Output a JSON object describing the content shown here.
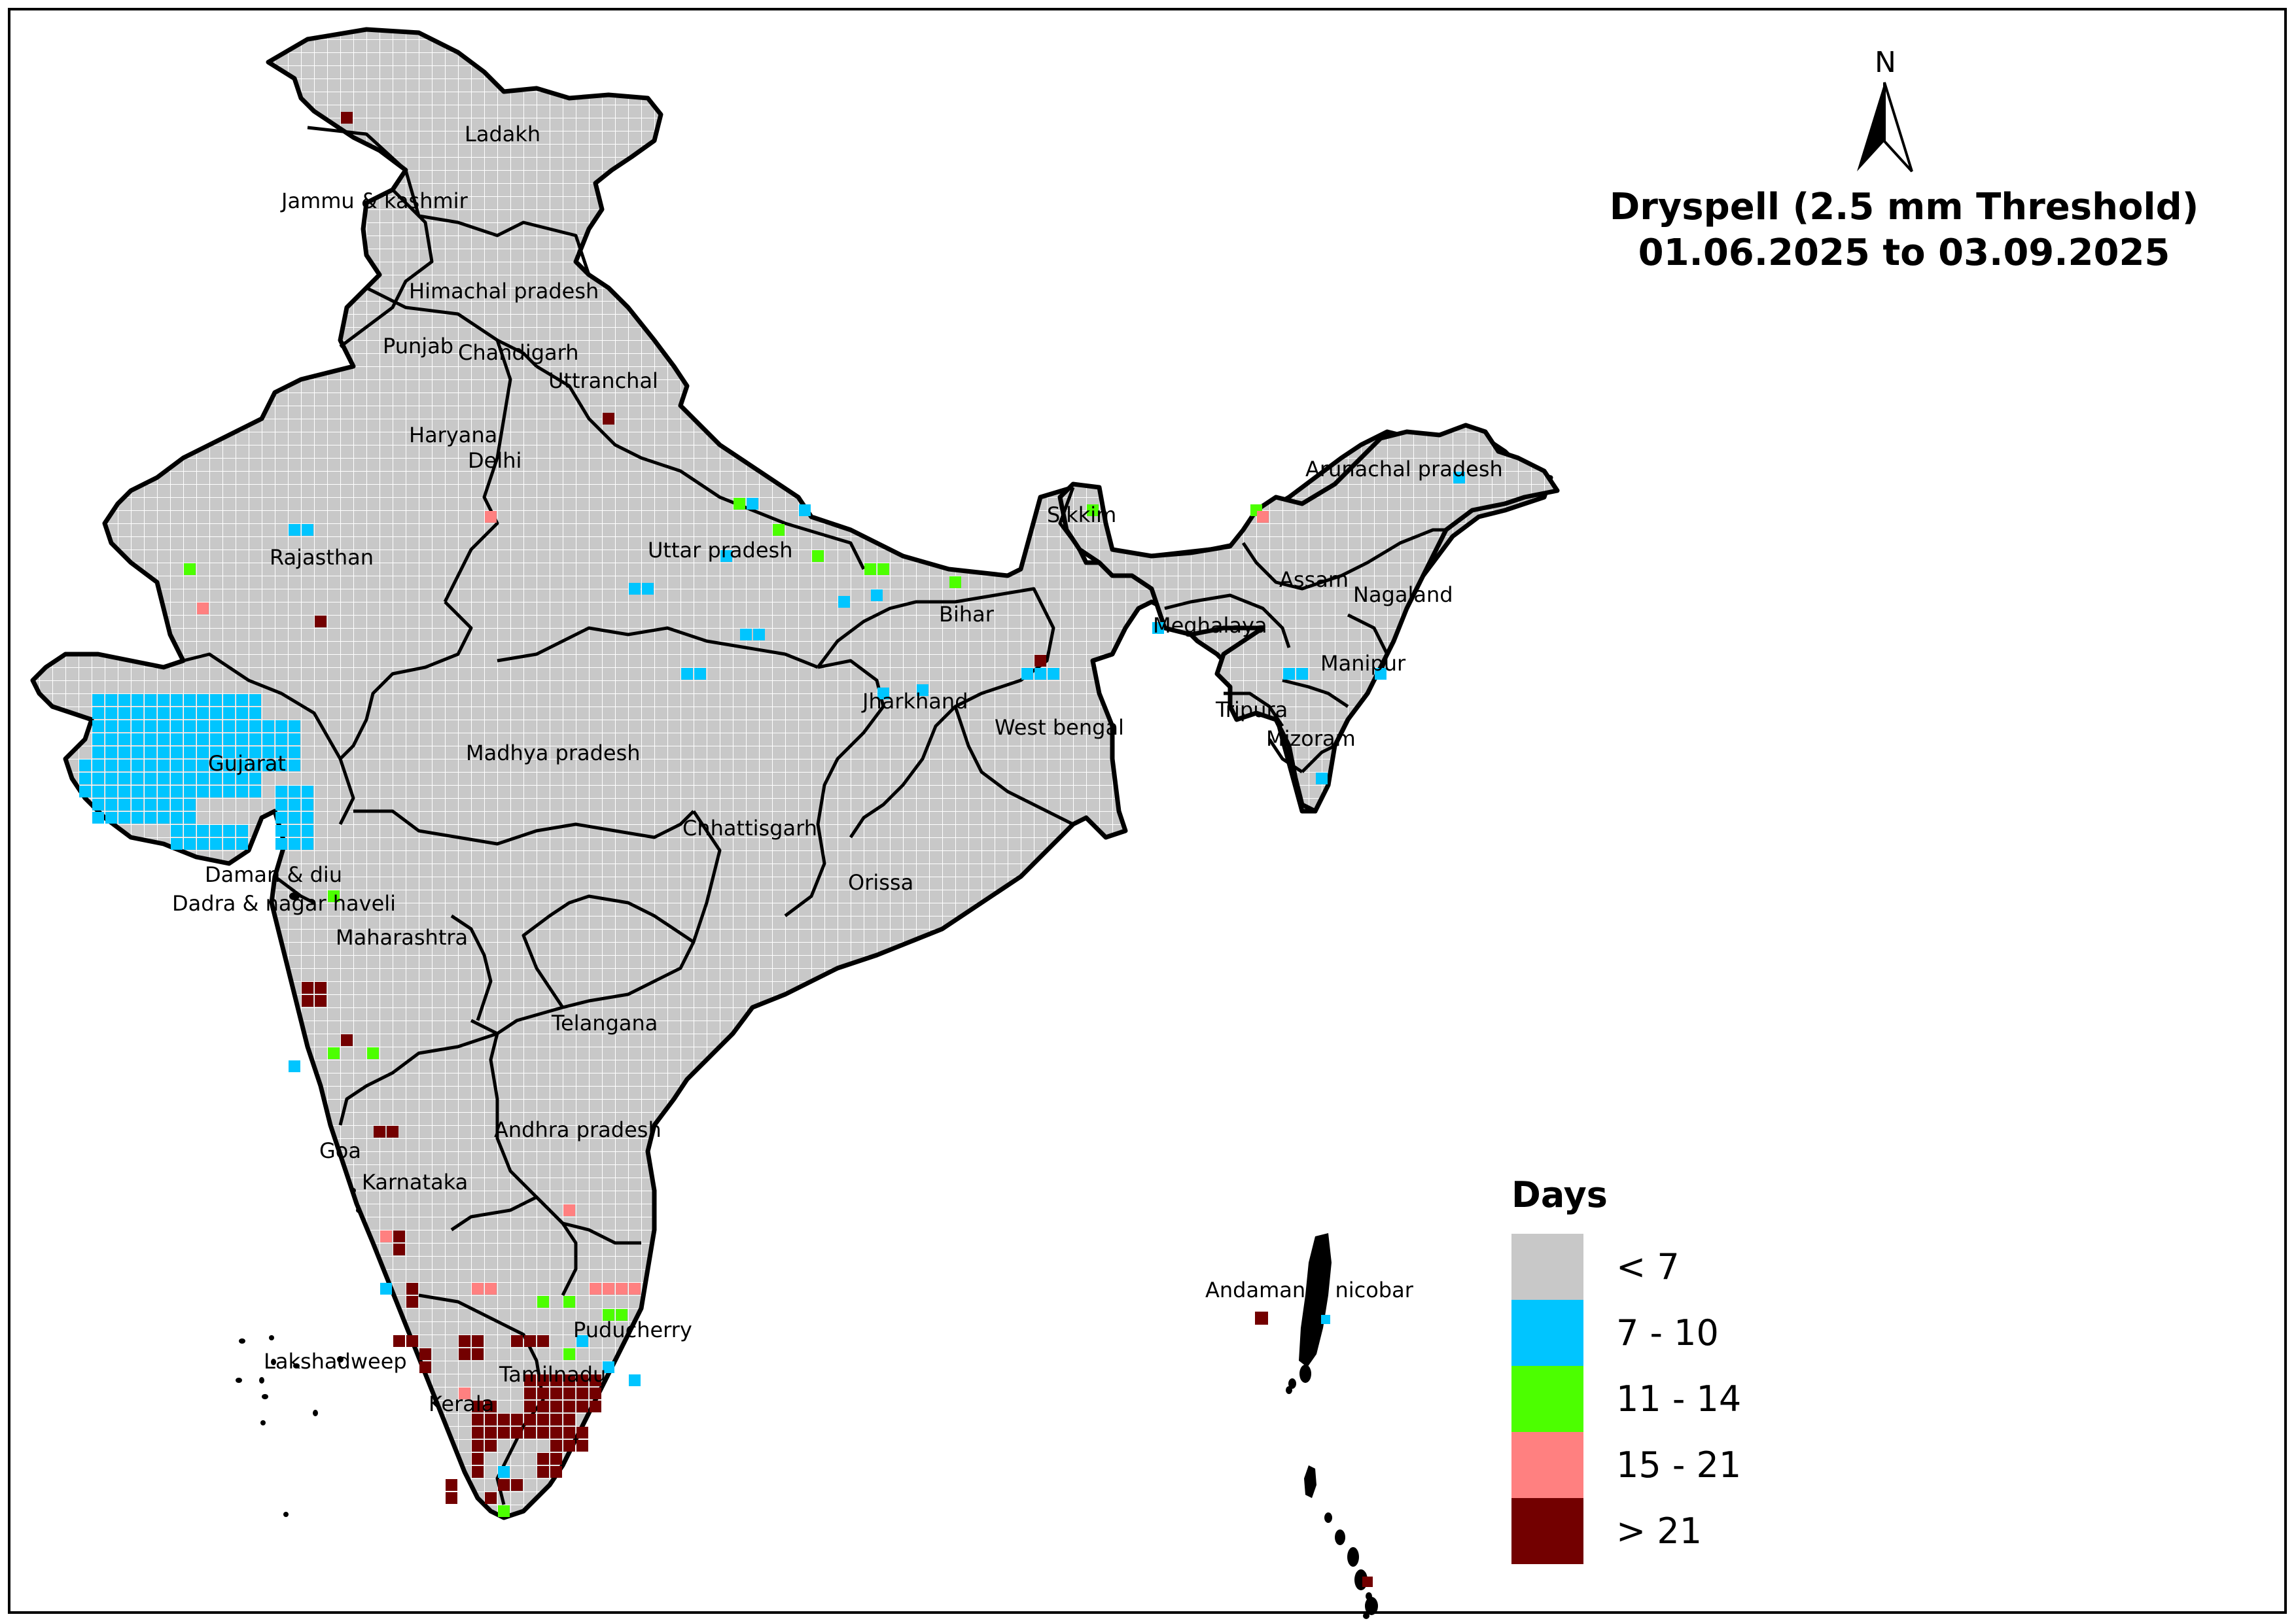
{
  "title": {
    "line1": "Dryspell (2.5 mm Threshold)",
    "line2": "01.06.2025 to 03.09.2025"
  },
  "north_arrow": {
    "label": "N",
    "icon": "north-arrow-icon"
  },
  "legend": {
    "title": "Days",
    "classes": [
      {
        "label": "< 7",
        "color": "#c8c8c8"
      },
      {
        "label": "7 - 10",
        "color": "#00c5ff"
      },
      {
        "label": "11 - 14",
        "color": "#4cff00"
      },
      {
        "label": "15 - 21",
        "color": "#ff8080"
      },
      {
        "label": "> 21",
        "color": "#730000"
      }
    ]
  },
  "states": [
    "Ladakh",
    "Jammu & kashmir",
    "Himachal pradesh",
    "Punjab",
    "Chandigarh",
    "Uttranchal",
    "Haryana",
    "Delhi",
    "Rajasthan",
    "Uttar pradesh",
    "Bihar",
    "Sikkim",
    "Arunachal pradesh",
    "Assam",
    "Nagaland",
    "Meghalaya",
    "Manipur",
    "Tripura",
    "Mizoram",
    "Jharkhand",
    "West bengal",
    "Gujarat",
    "Madhya pradesh",
    "Chhattisgarh",
    "Orissa",
    "Daman & diu",
    "Dadra & nagar haveli",
    "Maharashtra",
    "Telangana",
    "Andhra pradesh",
    "Goa",
    "Karnataka",
    "Puducherry",
    "Tamilnadu",
    "Kerala",
    "Lakshadweep",
    "Andaman & nicobar"
  ]
}
